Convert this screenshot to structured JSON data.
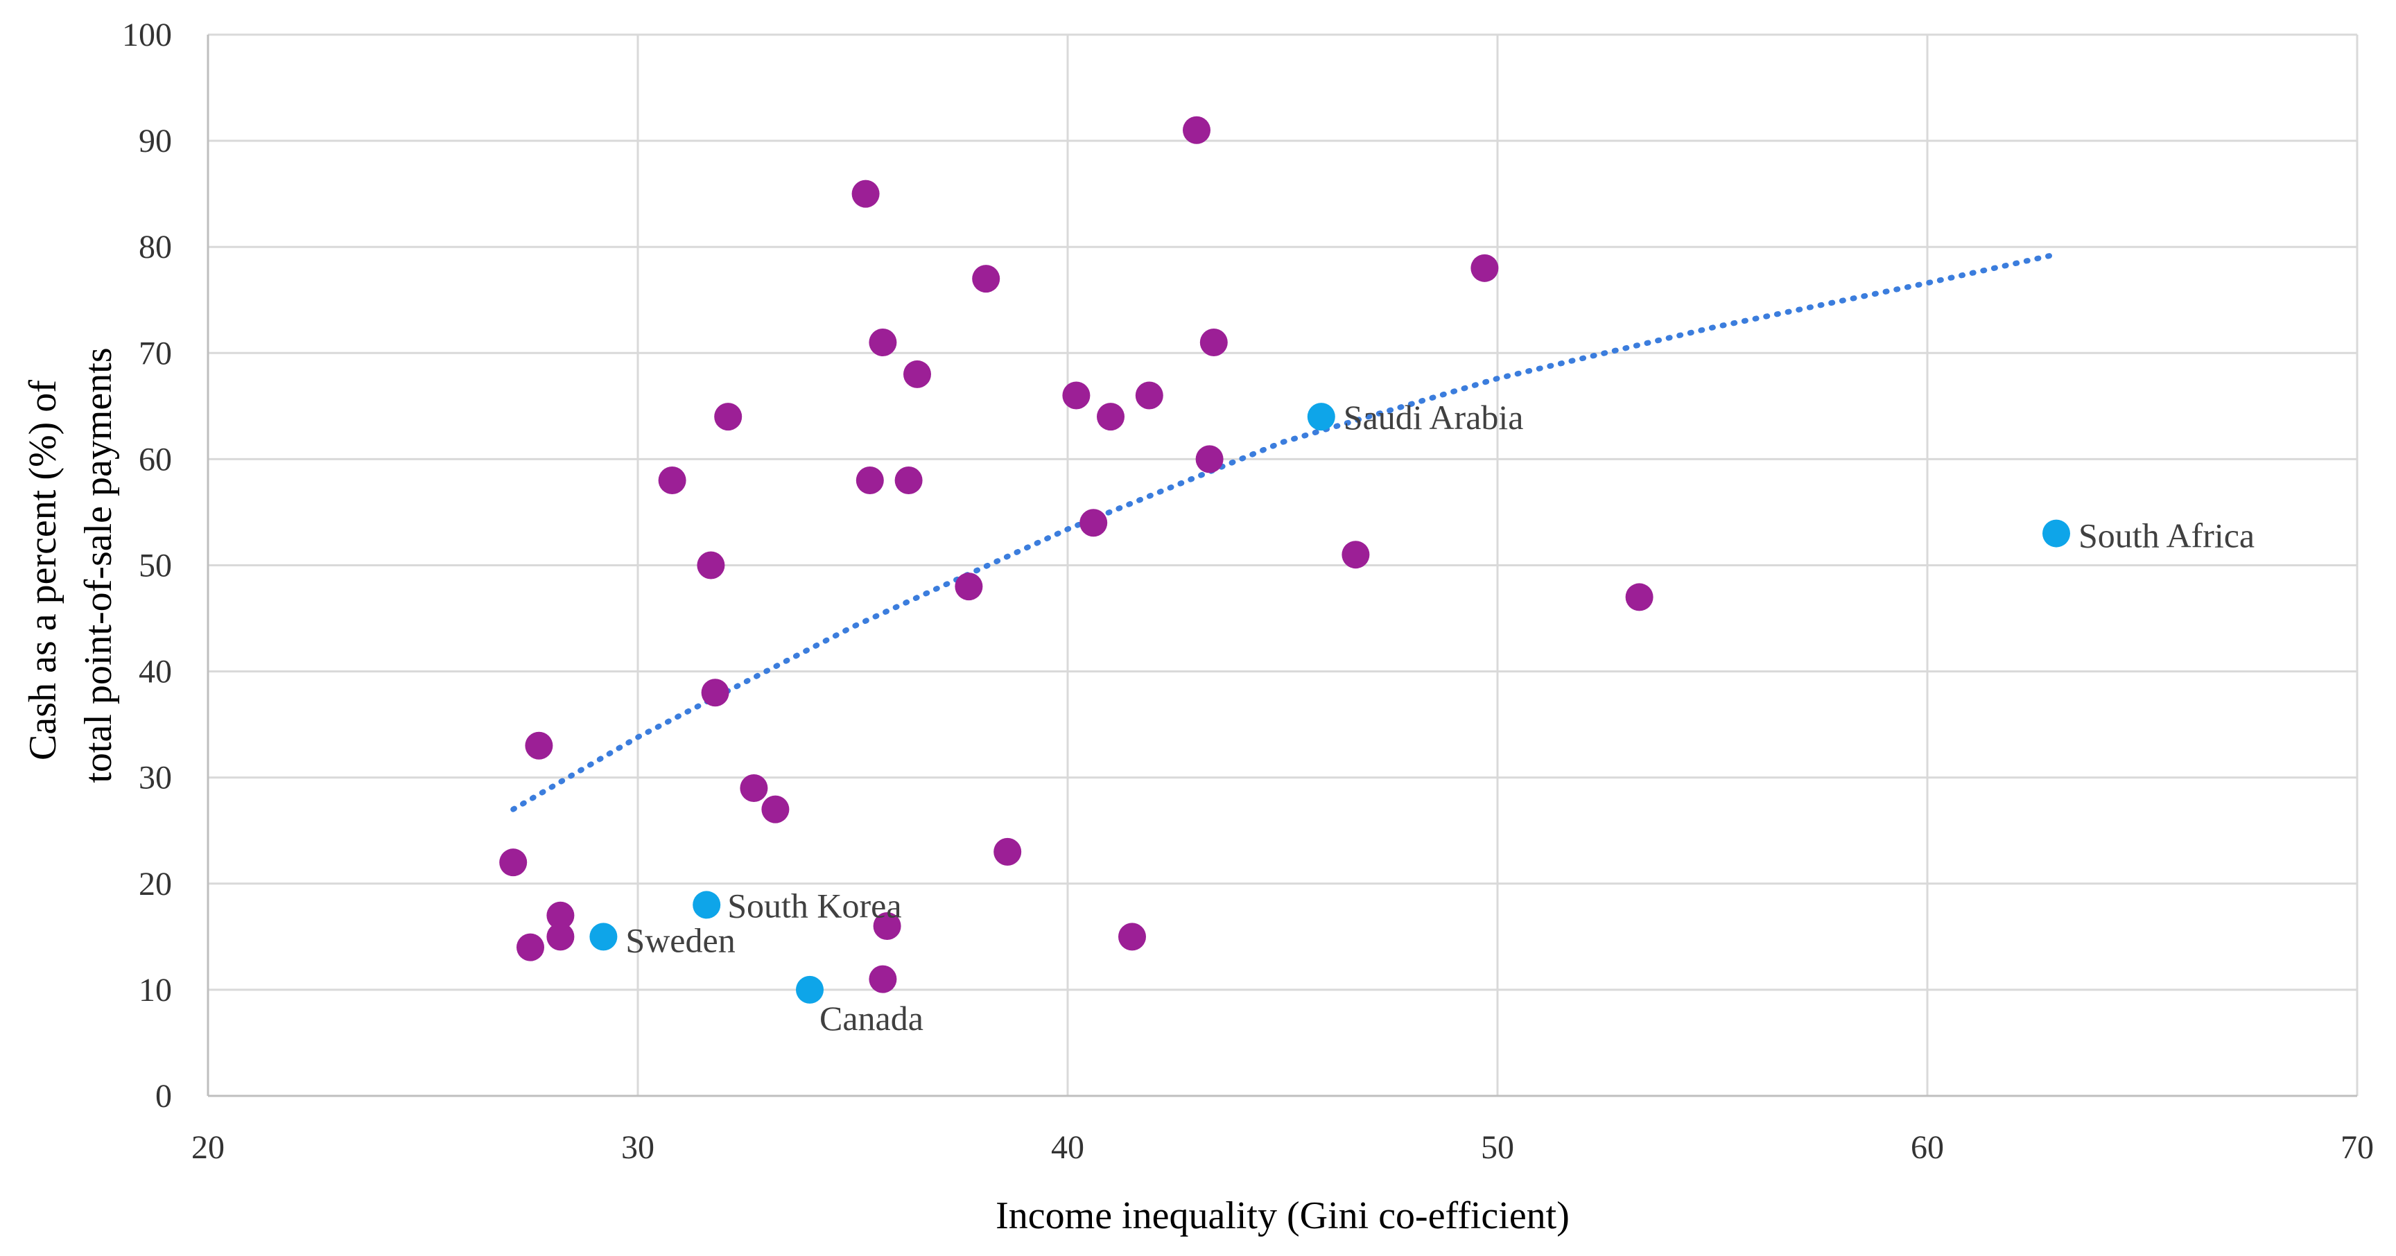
{
  "chart_data": {
    "type": "scatter",
    "title": "",
    "xlabel": "Income inequality (Gini co-efficient)",
    "ylabel_lines": [
      "Cash as a percent (%) of",
      "total point-of-sale payments"
    ],
    "xlim": [
      20,
      70
    ],
    "ylim": [
      0,
      100
    ],
    "xticks": [
      20,
      30,
      40,
      50,
      60,
      70
    ],
    "yticks": [
      0,
      10,
      20,
      30,
      40,
      50,
      60,
      70,
      80,
      90,
      100
    ],
    "grid": "horizontal and vertical",
    "colors": {
      "default": "#9c1f96",
      "highlight": "#0ea5e9",
      "trend": "#3b7ddd",
      "grid": "#d9d9d9",
      "axis": "#bfbfbf"
    },
    "series": [
      {
        "name": "Countries",
        "color": "#9c1f96",
        "points": [
          {
            "x": 27.1,
            "y": 22
          },
          {
            "x": 27.5,
            "y": 14
          },
          {
            "x": 27.7,
            "y": 33
          },
          {
            "x": 28.2,
            "y": 17
          },
          {
            "x": 28.2,
            "y": 15
          },
          {
            "x": 30.8,
            "y": 58
          },
          {
            "x": 31.7,
            "y": 50
          },
          {
            "x": 31.8,
            "y": 38
          },
          {
            "x": 32.1,
            "y": 64
          },
          {
            "x": 32.7,
            "y": 29
          },
          {
            "x": 33.2,
            "y": 27
          },
          {
            "x": 35.3,
            "y": 85
          },
          {
            "x": 35.4,
            "y": 58
          },
          {
            "x": 35.7,
            "y": 71
          },
          {
            "x": 35.7,
            "y": 11
          },
          {
            "x": 35.8,
            "y": 16
          },
          {
            "x": 36.3,
            "y": 58
          },
          {
            "x": 36.5,
            "y": 68
          },
          {
            "x": 37.7,
            "y": 48
          },
          {
            "x": 38.1,
            "y": 77
          },
          {
            "x": 38.6,
            "y": 23
          },
          {
            "x": 40.2,
            "y": 66
          },
          {
            "x": 40.6,
            "y": 54
          },
          {
            "x": 41.0,
            "y": 64
          },
          {
            "x": 41.5,
            "y": 15
          },
          {
            "x": 41.9,
            "y": 66
          },
          {
            "x": 43.0,
            "y": 91
          },
          {
            "x": 43.3,
            "y": 60
          },
          {
            "x": 43.4,
            "y": 71
          },
          {
            "x": 46.7,
            "y": 51
          },
          {
            "x": 49.7,
            "y": 78
          },
          {
            "x": 53.3,
            "y": 47
          }
        ]
      },
      {
        "name": "Highlighted countries",
        "color": "#0ea5e9",
        "points": [
          {
            "x": 29.2,
            "y": 15,
            "label": "Sweden"
          },
          {
            "x": 31.6,
            "y": 18,
            "label": "South Korea"
          },
          {
            "x": 34.0,
            "y": 10,
            "label": "Canada"
          },
          {
            "x": 45.9,
            "y": 64,
            "label": "Saudi Arabia"
          },
          {
            "x": 63.0,
            "y": 53,
            "label": "South Africa"
          }
        ]
      }
    ],
    "trendline": {
      "type": "logarithmic",
      "style": "dotted",
      "x_start": 27.1,
      "x_end": 63.0,
      "points": [
        {
          "x": 27.1,
          "y": 27
        },
        {
          "x": 30,
          "y": 33.8
        },
        {
          "x": 35,
          "y": 44.2
        },
        {
          "x": 40,
          "y": 53.4
        },
        {
          "x": 45,
          "y": 61.6
        },
        {
          "x": 50,
          "y": 67.6
        },
        {
          "x": 55,
          "y": 72.4
        },
        {
          "x": 60,
          "y": 76.6
        },
        {
          "x": 63.0,
          "y": 79.3
        }
      ]
    }
  }
}
